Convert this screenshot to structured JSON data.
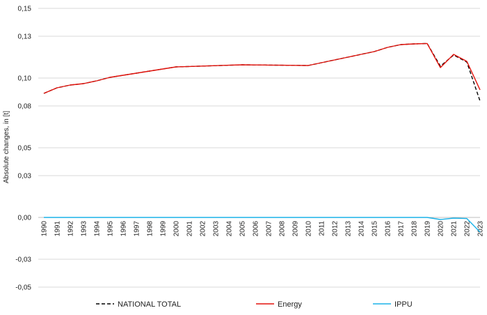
{
  "chart_data": {
    "type": "line",
    "title": "",
    "xlabel": "",
    "ylabel": "Absolute changes, in [t]",
    "ylim": [
      -0.05,
      0.15
    ],
    "yticks": [
      0.15,
      0.13,
      0.1,
      0.08,
      0.05,
      0.03,
      0.0,
      -0.03,
      -0.05
    ],
    "ytick_labels": [
      "0,15",
      "0,13",
      "0,10",
      "0,08",
      "0,05",
      "0,03",
      "0,00",
      "-0,03",
      "-0,05"
    ],
    "grid": "horizontal",
    "legend_position": "bottom",
    "x": [
      "1990",
      "1991",
      "1992",
      "1993",
      "1994",
      "1995",
      "1996",
      "1997",
      "1998",
      "1999",
      "2000",
      "2001",
      "2002",
      "2003",
      "2004",
      "2005",
      "2006",
      "2007",
      "2008",
      "2009",
      "2010",
      "2011",
      "2012",
      "2013",
      "2014",
      "2015",
      "2016",
      "2017",
      "2018",
      "2019",
      "2020",
      "2021",
      "2022",
      "2023"
    ],
    "series": [
      {
        "name": "NATIONAL TOTAL",
        "color": "#000000",
        "dash": "dashed",
        "values": [
          0.089,
          0.093,
          0.095,
          0.096,
          0.098,
          0.1005,
          0.102,
          0.1035,
          0.105,
          0.1065,
          0.108,
          0.1083,
          0.1086,
          0.1089,
          0.1092,
          0.1095,
          0.1094,
          0.1093,
          0.1092,
          0.1091,
          0.109,
          0.111,
          0.113,
          0.115,
          0.117,
          0.119,
          0.122,
          0.124,
          0.1245,
          0.1248,
          0.1085,
          0.1165,
          0.1115,
          0.0835
        ]
      },
      {
        "name": "Energy",
        "color": "#e3120b",
        "dash": "solid",
        "values": [
          0.089,
          0.093,
          0.095,
          0.096,
          0.098,
          0.1005,
          0.102,
          0.1035,
          0.105,
          0.1065,
          0.108,
          0.1083,
          0.1086,
          0.1089,
          0.1092,
          0.1095,
          0.1094,
          0.1093,
          0.1092,
          0.1091,
          0.109,
          0.111,
          0.113,
          0.115,
          0.117,
          0.119,
          0.122,
          0.124,
          0.1245,
          0.1248,
          0.1075,
          0.117,
          0.112,
          0.0915
        ]
      },
      {
        "name": "IPPU",
        "color": "#1ab2e8",
        "dash": "solid",
        "values": [
          0.0,
          0.0,
          0.0,
          0.0,
          0.0,
          0.0,
          0.0,
          0.0,
          0.0,
          0.0,
          0.0,
          0.0,
          0.0,
          0.0,
          0.0,
          0.0,
          0.0,
          0.0,
          0.0,
          0.0,
          0.0,
          0.0,
          0.0,
          0.0,
          0.0,
          0.0,
          0.0,
          0.0,
          0.0,
          0.0,
          -0.0015,
          -0.0005,
          -0.0008,
          -0.0105
        ]
      }
    ]
  }
}
